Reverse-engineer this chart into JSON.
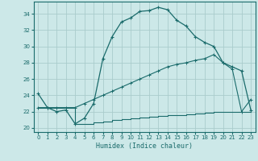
{
  "xlabel": "Humidex (Indice chaleur)",
  "xlim": [
    -0.5,
    23.5
  ],
  "ylim": [
    19.5,
    35.5
  ],
  "xticks": [
    0,
    1,
    2,
    3,
    4,
    5,
    6,
    7,
    8,
    9,
    10,
    11,
    12,
    13,
    14,
    15,
    16,
    17,
    18,
    19,
    20,
    21,
    22,
    23
  ],
  "yticks": [
    20,
    22,
    24,
    26,
    28,
    30,
    32,
    34
  ],
  "bg_color": "#cce8e8",
  "grid_color": "#aacccc",
  "line_color": "#1a6b6b",
  "curve1_x": [
    0,
    1,
    2,
    3,
    4,
    5,
    6,
    7,
    8,
    9,
    10,
    11,
    12,
    13,
    14,
    15,
    16,
    17,
    18,
    19,
    20,
    21,
    22,
    23
  ],
  "curve1_y": [
    24.2,
    22.5,
    22.0,
    22.2,
    20.5,
    21.2,
    23.0,
    28.5,
    31.2,
    33.0,
    33.5,
    34.3,
    34.4,
    34.8,
    34.5,
    33.2,
    32.5,
    31.2,
    30.5,
    30.0,
    28.0,
    27.5,
    27.0,
    22.2
  ],
  "curve2_x": [
    0,
    1,
    2,
    3,
    4,
    5,
    6,
    7,
    8,
    9,
    10,
    11,
    12,
    13,
    14,
    15,
    16,
    17,
    18,
    19,
    20,
    21,
    22,
    23
  ],
  "curve2_y": [
    22.5,
    22.5,
    22.5,
    22.5,
    22.5,
    23.0,
    23.5,
    24.0,
    24.5,
    25.0,
    25.5,
    26.0,
    26.5,
    27.0,
    27.5,
    27.8,
    28.0,
    28.3,
    28.5,
    29.0,
    28.0,
    27.2,
    22.0,
    23.5
  ],
  "curve3_x": [
    0,
    1,
    2,
    3,
    4,
    5,
    6,
    7,
    8,
    9,
    10,
    11,
    12,
    13,
    14,
    15,
    16,
    17,
    18,
    19,
    20,
    21,
    22,
    23
  ],
  "curve3_y": [
    22.5,
    22.5,
    22.5,
    22.5,
    20.5,
    20.5,
    20.7,
    20.8,
    21.0,
    21.1,
    21.2,
    21.3,
    21.4,
    21.5,
    21.6,
    21.6,
    21.7,
    21.8,
    21.9,
    22.0,
    22.0,
    22.0,
    22.0,
    22.0
  ]
}
